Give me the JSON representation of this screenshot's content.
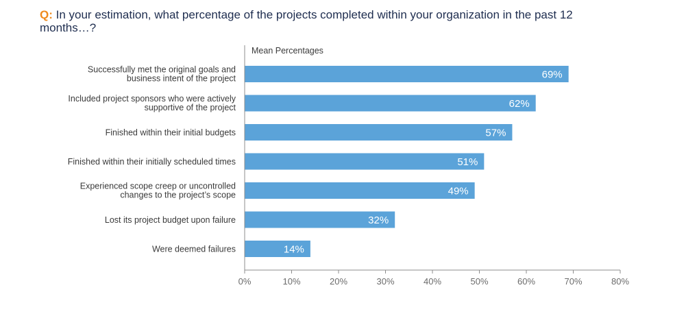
{
  "question": {
    "prefix": "Q:",
    "text": "In your estimation, what percentage of the projects completed within your organization in the past 12 months…?"
  },
  "chart_data": {
    "type": "bar",
    "orientation": "horizontal",
    "ylabel": "Mean Percentages",
    "categories": [
      [
        "Successfully met the original goals and",
        "business intent of the project"
      ],
      [
        "Included project sponsors who were actively",
        "supportive of the project"
      ],
      [
        "Finished within their initial budgets"
      ],
      [
        "Finished within their initially scheduled times"
      ],
      [
        "Experienced scope creep or uncontrolled",
        "changes to the project’s scope"
      ],
      [
        "Lost its project budget upon failure"
      ],
      [
        "Were deemed failures"
      ]
    ],
    "values": [
      69,
      62,
      57,
      51,
      49,
      32,
      14
    ],
    "value_labels": [
      "69%",
      "62%",
      "57%",
      "51%",
      "49%",
      "32%",
      "14%"
    ],
    "xlim": [
      0,
      80
    ],
    "xticks": [
      0,
      10,
      20,
      30,
      40,
      50,
      60,
      70,
      80
    ],
    "xtick_labels": [
      "0%",
      "10%",
      "20%",
      "30%",
      "40%",
      "50%",
      "60%",
      "70%",
      "80%"
    ],
    "grid": false,
    "bar_color": "#5ba3d9",
    "axis_color": "#8c8c8c"
  }
}
